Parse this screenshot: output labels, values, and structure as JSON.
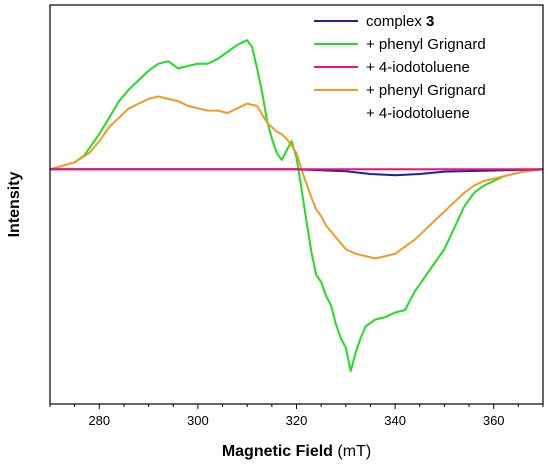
{
  "chart_data": {
    "type": "line",
    "xlabel_bold": "Magnetic Field",
    "xlabel_unit": "(mT)",
    "ylabel": "Intensity",
    "xlim": [
      270,
      370
    ],
    "ylim": [
      -1.0,
      0.7
    ],
    "x_ticks": [
      280,
      300,
      320,
      340,
      360
    ],
    "y_ticks_shown": false,
    "grid": false,
    "legend_position": "top-right",
    "legend": [
      {
        "name": "complex",
        "name_bold": "3",
        "color": "#1f1fa8"
      },
      {
        "name": "+ phenyl Grignard",
        "color": "#22dd22"
      },
      {
        "name": "+ 4-iodotoluene",
        "color": "#ee1177"
      },
      {
        "name": "+ phenyl Grignard",
        "name_line2": "+ 4-iodotoluene",
        "color": "#f39a26"
      }
    ],
    "series": [
      {
        "key": "complex-3",
        "color": "#1f1fa8",
        "x": [
          270,
          280,
          300,
          320,
          330,
          335,
          340,
          345,
          350,
          360,
          370
        ],
        "y": [
          0.0,
          0.0,
          0.0,
          0.0,
          -0.008,
          -0.02,
          -0.025,
          -0.02,
          -0.01,
          -0.005,
          0.0
        ]
      },
      {
        "key": "phenyl-grignard",
        "color": "#22dd22",
        "x": [
          270,
          275,
          277,
          280,
          282,
          284,
          286,
          288,
          290,
          292,
          294,
          296,
          298,
          300,
          302,
          304,
          306,
          308,
          310,
          311,
          312,
          313,
          314,
          315,
          316,
          317,
          318,
          319,
          320,
          321,
          322,
          323,
          324,
          325,
          326,
          327,
          328,
          329,
          330,
          331,
          332,
          333,
          334,
          336,
          338,
          340,
          342,
          344,
          346,
          348,
          350,
          352,
          354,
          356,
          358,
          360,
          362,
          364,
          366,
          368,
          370
        ],
        "y": [
          0.0,
          0.03,
          0.06,
          0.15,
          0.22,
          0.29,
          0.34,
          0.38,
          0.42,
          0.45,
          0.46,
          0.43,
          0.44,
          0.45,
          0.45,
          0.47,
          0.5,
          0.53,
          0.55,
          0.52,
          0.43,
          0.33,
          0.21,
          0.13,
          0.07,
          0.04,
          0.08,
          0.12,
          0.05,
          -0.08,
          -0.22,
          -0.35,
          -0.45,
          -0.48,
          -0.54,
          -0.58,
          -0.66,
          -0.72,
          -0.76,
          -0.86,
          -0.78,
          -0.72,
          -0.67,
          -0.64,
          -0.63,
          -0.61,
          -0.6,
          -0.52,
          -0.46,
          -0.4,
          -0.34,
          -0.25,
          -0.16,
          -0.1,
          -0.07,
          -0.05,
          -0.03,
          -0.02,
          -0.01,
          -0.005,
          0.0
        ]
      },
      {
        "key": "4-iodotoluene",
        "color": "#ee1177",
        "x": [
          270,
          300,
          320,
          340,
          370
        ],
        "y": [
          0.0,
          0.0,
          0.0,
          0.0,
          0.0
        ]
      },
      {
        "key": "phenyl-grignard-4-iodotoluene",
        "color": "#f39a26",
        "x": [
          270,
          275,
          278,
          280,
          282,
          284,
          286,
          288,
          290,
          292,
          294,
          296,
          298,
          300,
          302,
          304,
          306,
          308,
          310,
          312,
          314,
          316,
          317,
          318,
          319,
          320,
          321,
          322,
          323,
          324,
          325,
          326,
          328,
          330,
          332,
          334,
          336,
          338,
          340,
          342,
          344,
          346,
          348,
          350,
          352,
          354,
          356,
          358,
          360,
          362,
          364,
          366,
          368,
          370
        ],
        "y": [
          0.0,
          0.03,
          0.07,
          0.12,
          0.18,
          0.22,
          0.26,
          0.28,
          0.3,
          0.31,
          0.3,
          0.29,
          0.27,
          0.26,
          0.25,
          0.25,
          0.24,
          0.26,
          0.28,
          0.27,
          0.2,
          0.16,
          0.15,
          0.13,
          0.1,
          0.07,
          0.0,
          -0.06,
          -0.12,
          -0.17,
          -0.2,
          -0.24,
          -0.29,
          -0.34,
          -0.36,
          -0.37,
          -0.38,
          -0.37,
          -0.36,
          -0.33,
          -0.3,
          -0.26,
          -0.22,
          -0.18,
          -0.14,
          -0.1,
          -0.07,
          -0.05,
          -0.04,
          -0.03,
          -0.02,
          -0.01,
          -0.005,
          0.0
        ]
      }
    ]
  }
}
